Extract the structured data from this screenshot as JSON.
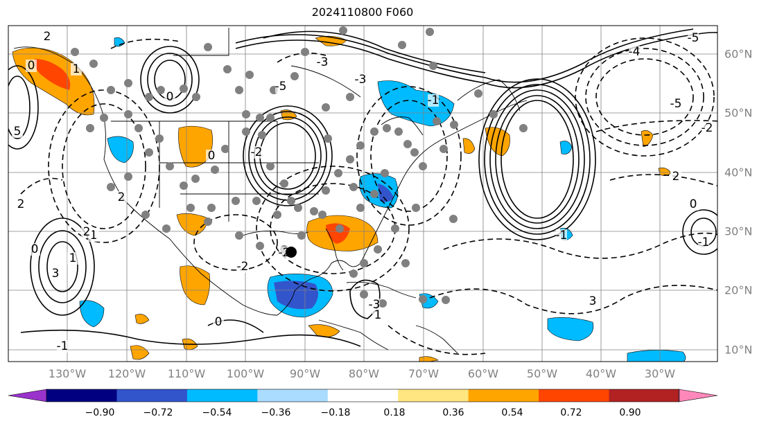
{
  "title": "2024110800 F060",
  "longitude_labels": [
    "130°W",
    "120°W",
    "110°W",
    "100°W",
    "90°W",
    "80°W",
    "70°W",
    "60°W",
    "50°W",
    "40°W",
    "30°W"
  ],
  "latitude_labels": [
    "60°N",
    "50°N",
    "40°N",
    "30°N",
    "20°N",
    "10°N"
  ],
  "colorbar": {
    "tick_labels": [
      "−0.90",
      "−0.72",
      "−0.54",
      "−0.36",
      "−0.18",
      "0.18",
      "0.36",
      "0.54",
      "0.72",
      "0.90"
    ],
    "colors": [
      "#9933cc",
      "#000080",
      "#3355cc",
      "#00bbff",
      "#aadcff",
      "#ffffff",
      "#ffe680",
      "#ffa500",
      "#ff4500",
      "#b22222",
      "#ff88bb"
    ]
  },
  "contour_labels": [
    "2",
    "0",
    "1",
    "3",
    "5",
    "2",
    "0",
    "-1",
    "-3",
    "-5",
    "-2",
    "0",
    "-3",
    "-1",
    "-4",
    "-5",
    "-5",
    "-2",
    "0",
    "2",
    "3",
    "-2",
    "0",
    "1",
    "-1",
    "-2",
    "-3",
    "0",
    "1",
    "2",
    "-1",
    "2",
    "1"
  ],
  "legend_note": "",
  "colors": {
    "positive": "#ffa500",
    "positive_strong": "#ff4500",
    "negative": "#00bbff",
    "negative_strong": "#3355cc",
    "coast": "#000000",
    "grid": "#808080"
  },
  "map_elements": {
    "marker": "black-dot",
    "stations": "grey-dots"
  }
}
